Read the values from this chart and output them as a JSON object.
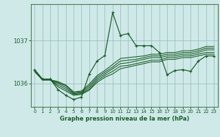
{
  "title": "Graphe pression niveau de la mer (hPa)",
  "background_color": "#cfe9e9",
  "grid_color": "#9bbfbb",
  "line_color": "#1a5c28",
  "border_color": "#4a7a50",
  "x_labels": [
    "0",
    "1",
    "2",
    "3",
    "4",
    "5",
    "6",
    "7",
    "8",
    "9",
    "10",
    "11",
    "12",
    "13",
    "14",
    "15",
    "16",
    "17",
    "18",
    "19",
    "20",
    "21",
    "22",
    "23"
  ],
  "yticks": [
    1036,
    1037
  ],
  "ylim": [
    1035.45,
    1037.85
  ],
  "xlim": [
    -0.5,
    23.5
  ],
  "envelope_series": [
    [
      1036.28,
      1036.08,
      1036.08,
      1035.92,
      1035.82,
      1035.72,
      1035.74,
      1035.84,
      1036.02,
      1036.14,
      1036.22,
      1036.34,
      1036.38,
      1036.42,
      1036.46,
      1036.5,
      1036.5,
      1036.56,
      1036.56,
      1036.6,
      1036.6,
      1036.64,
      1036.68,
      1036.68
    ],
    [
      1036.28,
      1036.08,
      1036.08,
      1035.96,
      1035.86,
      1035.74,
      1035.76,
      1035.86,
      1036.06,
      1036.18,
      1036.28,
      1036.4,
      1036.42,
      1036.46,
      1036.5,
      1036.54,
      1036.54,
      1036.6,
      1036.6,
      1036.64,
      1036.64,
      1036.68,
      1036.72,
      1036.72
    ],
    [
      1036.28,
      1036.08,
      1036.08,
      1036.0,
      1035.9,
      1035.76,
      1035.78,
      1035.9,
      1036.1,
      1036.22,
      1036.34,
      1036.46,
      1036.48,
      1036.52,
      1036.56,
      1036.6,
      1036.6,
      1036.64,
      1036.64,
      1036.68,
      1036.68,
      1036.72,
      1036.78,
      1036.78
    ],
    [
      1036.28,
      1036.08,
      1036.08,
      1036.02,
      1035.94,
      1035.78,
      1035.8,
      1035.94,
      1036.14,
      1036.26,
      1036.38,
      1036.52,
      1036.54,
      1036.56,
      1036.6,
      1036.64,
      1036.64,
      1036.68,
      1036.68,
      1036.72,
      1036.72,
      1036.76,
      1036.82,
      1036.82
    ],
    [
      1036.28,
      1036.08,
      1036.08,
      1036.04,
      1035.96,
      1035.8,
      1035.82,
      1035.98,
      1036.18,
      1036.3,
      1036.44,
      1036.58,
      1036.6,
      1036.62,
      1036.64,
      1036.68,
      1036.68,
      1036.72,
      1036.72,
      1036.76,
      1036.76,
      1036.8,
      1036.86,
      1036.86
    ]
  ],
  "main_series": [
    1036.32,
    1036.1,
    1036.1,
    1035.85,
    1035.72,
    1035.62,
    1035.68,
    1036.22,
    1036.52,
    1036.65,
    1037.65,
    1037.12,
    1037.16,
    1036.88,
    1036.88,
    1036.88,
    1036.72,
    1036.2,
    1036.3,
    1036.32,
    1036.28,
    1036.52,
    1036.64,
    1036.64
  ]
}
